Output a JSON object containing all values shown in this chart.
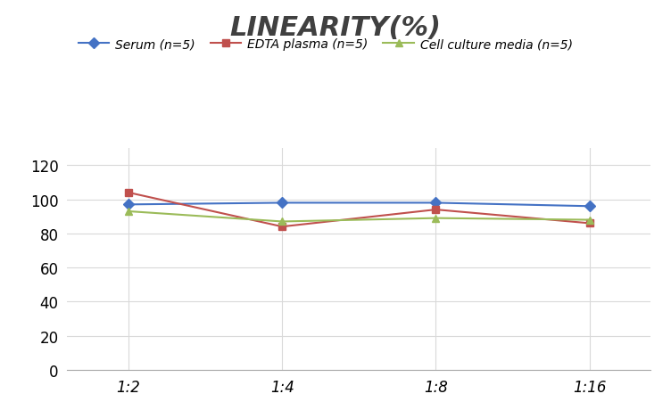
{
  "title": "LINEARITY(%)",
  "x_labels": [
    "1:2",
    "1:4",
    "1:8",
    "1:16"
  ],
  "x_positions": [
    0,
    1,
    2,
    3
  ],
  "series": [
    {
      "label": "Serum (n=5)",
      "values": [
        97,
        98,
        98,
        96
      ],
      "color": "#4472C4",
      "marker": "D",
      "marker_facecolor": "#4472C4",
      "linewidth": 1.5,
      "markersize": 6
    },
    {
      "label": "EDTA plasma (n=5)",
      "values": [
        104,
        84,
        94,
        86
      ],
      "color": "#C0504D",
      "marker": "s",
      "marker_facecolor": "#C0504D",
      "linewidth": 1.5,
      "markersize": 6
    },
    {
      "label": "Cell culture media (n=5)",
      "values": [
        93,
        87,
        89,
        88
      ],
      "color": "#9BBB59",
      "marker": "^",
      "marker_facecolor": "#9BBB59",
      "linewidth": 1.5,
      "markersize": 6
    }
  ],
  "ylim": [
    0,
    130
  ],
  "yticks": [
    0,
    20,
    40,
    60,
    80,
    100,
    120
  ],
  "grid_color": "#D9D9D9",
  "background_color": "#FFFFFF",
  "title_fontsize": 22,
  "title_fontstyle": "italic",
  "title_fontweight": "bold",
  "title_color": "#404040",
  "legend_fontsize": 10,
  "tick_fontsize": 12
}
